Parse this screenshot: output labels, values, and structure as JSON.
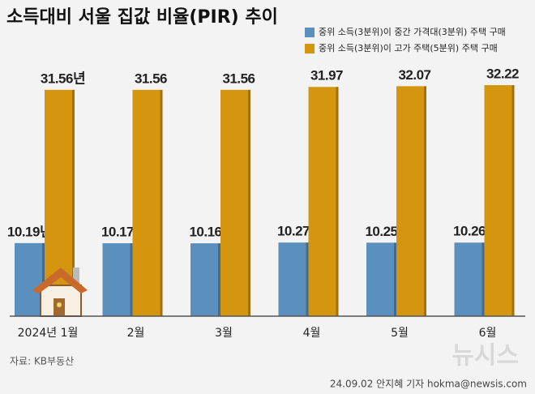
{
  "chart_data": {
    "type": "bar",
    "title": "소득대비 서울 집값 비율(PIR) 추이",
    "categories": [
      "2024년 1월",
      "2월",
      "3월",
      "4월",
      "5월",
      "6월"
    ],
    "series": [
      {
        "name": "중위 소득(3분위)이 중간 가격대(3분위) 주택 구매",
        "color": "#5b8fbd",
        "values": [
          10.19,
          10.17,
          10.16,
          10.27,
          10.25,
          10.26
        ],
        "value_labels": [
          "10.19년",
          "10.17",
          "10.16",
          "10.27",
          "10.25",
          "10.26"
        ]
      },
      {
        "name": "중위 소득(3분위)이 고가 주택(5분위) 주택 구매",
        "color": "#d4960f",
        "values": [
          31.56,
          31.56,
          31.56,
          31.97,
          32.07,
          32.22
        ],
        "value_labels": [
          "31.56년",
          "31.56",
          "31.56",
          "31.97",
          "32.07",
          "32.22"
        ]
      }
    ],
    "source": "자료: KB부동산",
    "watermark": "뉴시스",
    "credit": "24.09.02 안지혜 기자 hokma@newsis.com"
  }
}
